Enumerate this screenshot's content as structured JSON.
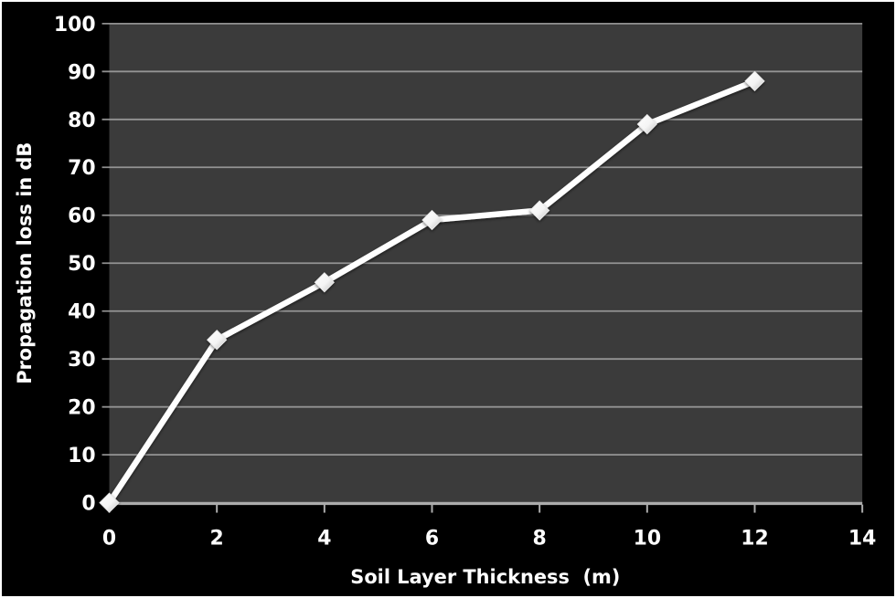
{
  "chart_data": {
    "type": "line",
    "title": "",
    "xlabel": "Soil Layer Thickness  (m)",
    "ylabel": "Propagation loss in dB",
    "x": [
      0,
      2,
      4,
      6,
      8,
      10,
      12
    ],
    "y": [
      0,
      34,
      46,
      59,
      61,
      79,
      88
    ],
    "xticks": [
      0,
      2,
      4,
      6,
      8,
      10,
      12,
      14
    ],
    "yticks": [
      0,
      10,
      20,
      30,
      40,
      50,
      60,
      70,
      80,
      90,
      100
    ],
    "xlim": [
      0,
      14
    ],
    "ylim": [
      0,
      100
    ],
    "grid": "horizontal",
    "legend": "none",
    "marker": "diamond",
    "colors": {
      "background": "#000000",
      "plot_background": "#3B3B3B",
      "gridline": "#9E9E9E",
      "axis_line": "#ACACAC",
      "tick_text": "#FFFFFF",
      "title_text": "#FFFFFF",
      "series_line": "#FFFFFF",
      "marker_fill": "#FFFFFF",
      "marker_shade": "#C4C4C4",
      "frame_border": "#FFFFFF"
    }
  }
}
